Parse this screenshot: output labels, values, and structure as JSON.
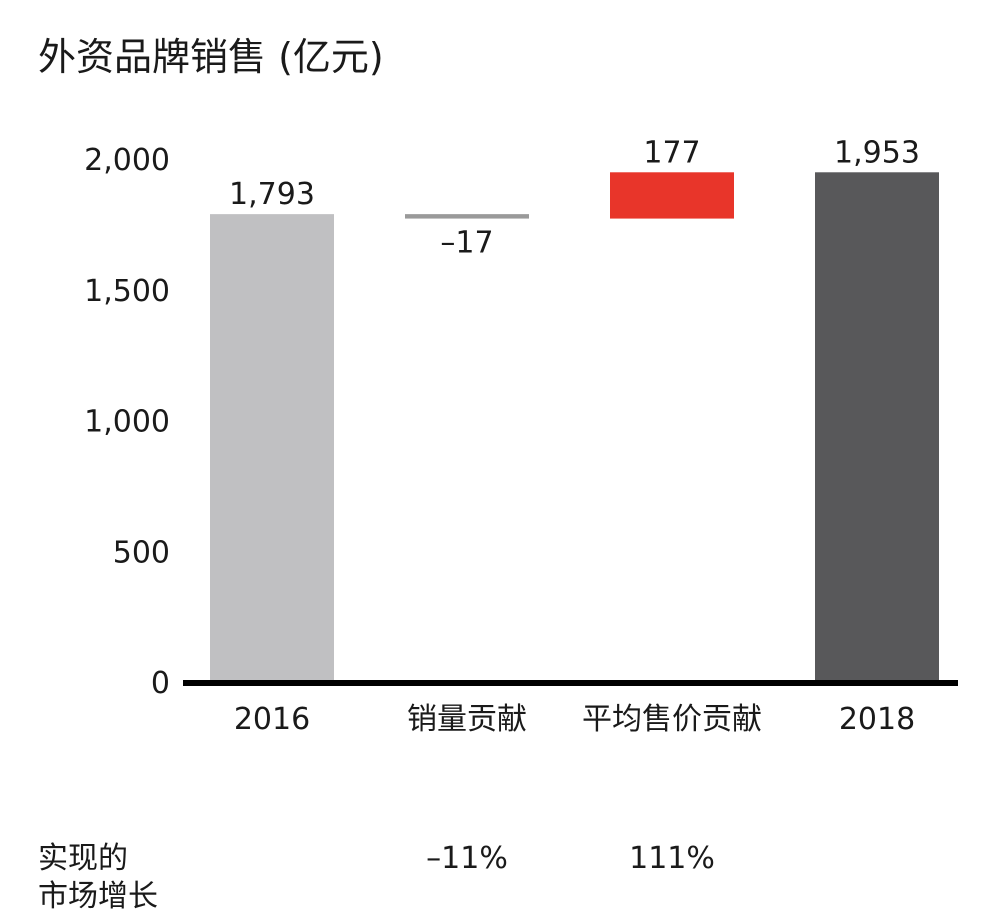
{
  "chart_data": {
    "type": "bar",
    "subtype": "waterfall",
    "title": "外资品牌销售 (亿元)",
    "categories": [
      "2016",
      "销量贡献",
      "平均售价贡献",
      "2018"
    ],
    "bars": [
      {
        "category": "2016",
        "value": 1793,
        "label": "1,793",
        "kind": "total",
        "color": "#c0c0c2"
      },
      {
        "category": "销量贡献",
        "value": -17,
        "label": "–17",
        "kind": "delta",
        "color": "#9a9a9a"
      },
      {
        "category": "平均售价贡献",
        "value": 177,
        "label": "177",
        "kind": "delta",
        "color": "#e8352a"
      },
      {
        "category": "2018",
        "value": 1953,
        "label": "1,953",
        "kind": "total",
        "color": "#58585a"
      }
    ],
    "yticks": [
      0,
      500,
      1000,
      1500,
      2000
    ],
    "ytick_labels": [
      "0",
      "500",
      "1,000",
      "1,500",
      "2,000"
    ],
    "ylim": [
      0,
      2000
    ],
    "grid": false,
    "xlabel": "",
    "ylabel": ""
  },
  "footer": {
    "label_line1": "实现的",
    "label_line2": "市场增长",
    "values": [
      "",
      "–11%",
      "111%",
      ""
    ]
  }
}
